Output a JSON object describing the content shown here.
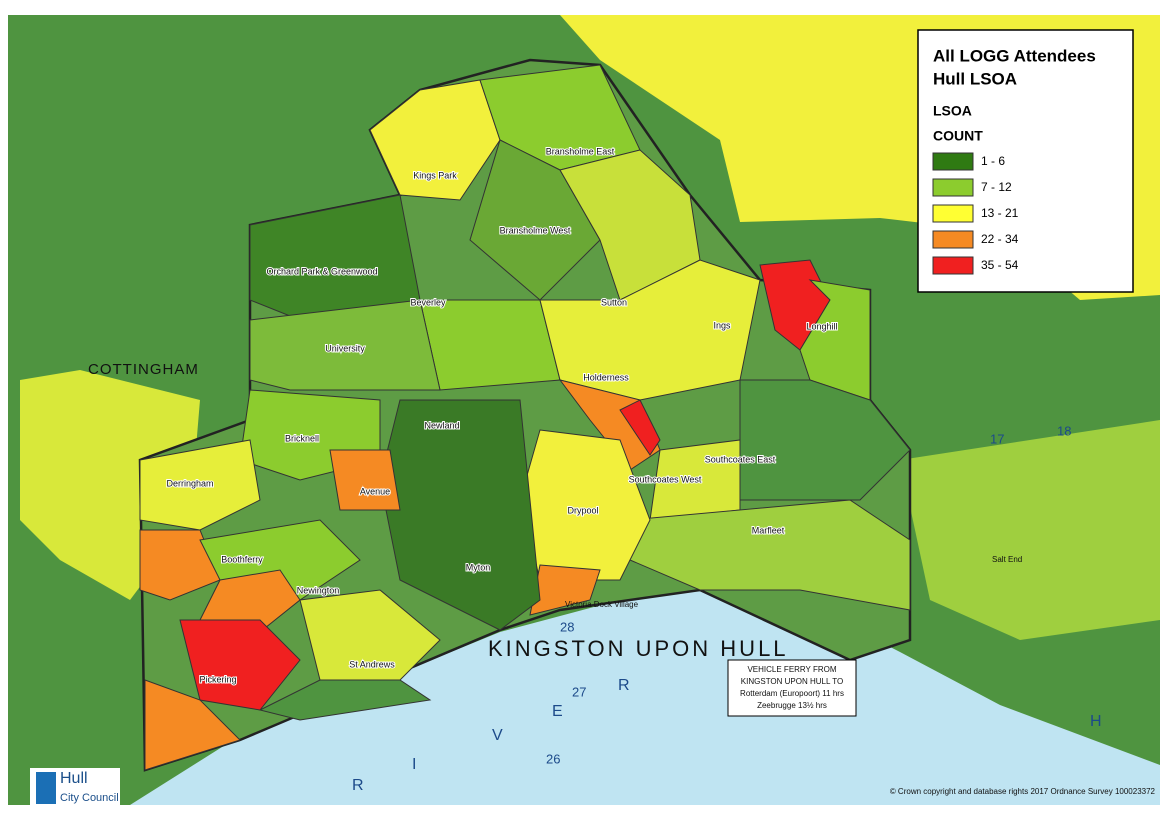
{
  "legend": {
    "title_lines": [
      "All LOGG Attendees",
      "Hull LSOA"
    ],
    "layer": "LSOA",
    "field": "COUNT",
    "items": [
      {
        "label": "1 - 6",
        "color": "#2f7a12"
      },
      {
        "label": "7 - 12",
        "color": "#8ccc2e"
      },
      {
        "label": "13 - 21",
        "color": "#ffff33"
      },
      {
        "label": "22 - 34",
        "color": "#f58a23"
      },
      {
        "label": "35 - 54",
        "color": "#f02020"
      }
    ]
  },
  "wards": [
    "Kings Park",
    "Bransholme East",
    "Bransholme West",
    "Orchard Park & Greenwood",
    "Beverley",
    "Sutton",
    "Ings",
    "Longhill",
    "University",
    "Holderness",
    "Newland",
    "Bricknell",
    "Southcoates East",
    "Southcoates West",
    "Derringham",
    "Avenue",
    "Drypool",
    "Marfleet",
    "Boothferry",
    "Myton",
    "Newington",
    "St Andrews",
    "Pickering"
  ],
  "places": {
    "town": "COTTINGHAM",
    "city": "KINGSTON UPON HULL",
    "salt_end": "Salt End",
    "village": "Victoria Dock Village",
    "river_letters": [
      "R",
      "I",
      "V",
      "E",
      "R",
      "H"
    ],
    "grid_numbers": [
      "28",
      "27",
      "26",
      "17",
      "18"
    ]
  },
  "ferry": {
    "lines": [
      "VEHICLE FERRY FROM",
      "KINGSTON UPON HULL TO",
      "Rotterdam (Europoort) 11 hrs",
      "Zeebrugge 13½ hrs"
    ]
  },
  "logo": {
    "name": "Hull",
    "sub": "City Council"
  },
  "copyright": "© Crown copyright and database rights 2017 Ordnance Survey 100023372"
}
